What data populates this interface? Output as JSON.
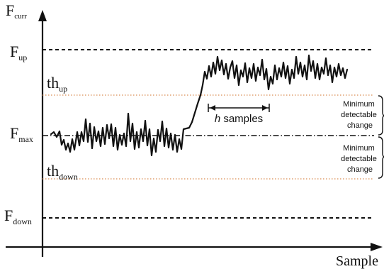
{
  "axes": {
    "y_label_main": "F",
    "y_label_sub": "curr",
    "x_label": "Sample"
  },
  "levels": {
    "f_up": {
      "main": "F",
      "sub": "up",
      "style": "dashed",
      "color": "#111111"
    },
    "th_up": {
      "main": "th",
      "sub": "up",
      "style": "dotted",
      "color": "#e0a070"
    },
    "f_max": {
      "main": "F",
      "sub": "max",
      "style": "dash-dot",
      "color": "#111111"
    },
    "th_down": {
      "main": "th",
      "sub": "down",
      "style": "dotted",
      "color": "#e0a070"
    },
    "f_down": {
      "main": "F",
      "sub": "down",
      "style": "dashed",
      "color": "#111111"
    }
  },
  "annotations": {
    "h_samples_italic": "h",
    "h_samples_rest": " samples",
    "upper_change": [
      "Minimum",
      "detectable",
      "change"
    ],
    "lower_change": [
      "Minimum",
      "detectable",
      "change"
    ]
  },
  "colors": {
    "ink": "#111111",
    "threshold": "#e0a070"
  }
}
